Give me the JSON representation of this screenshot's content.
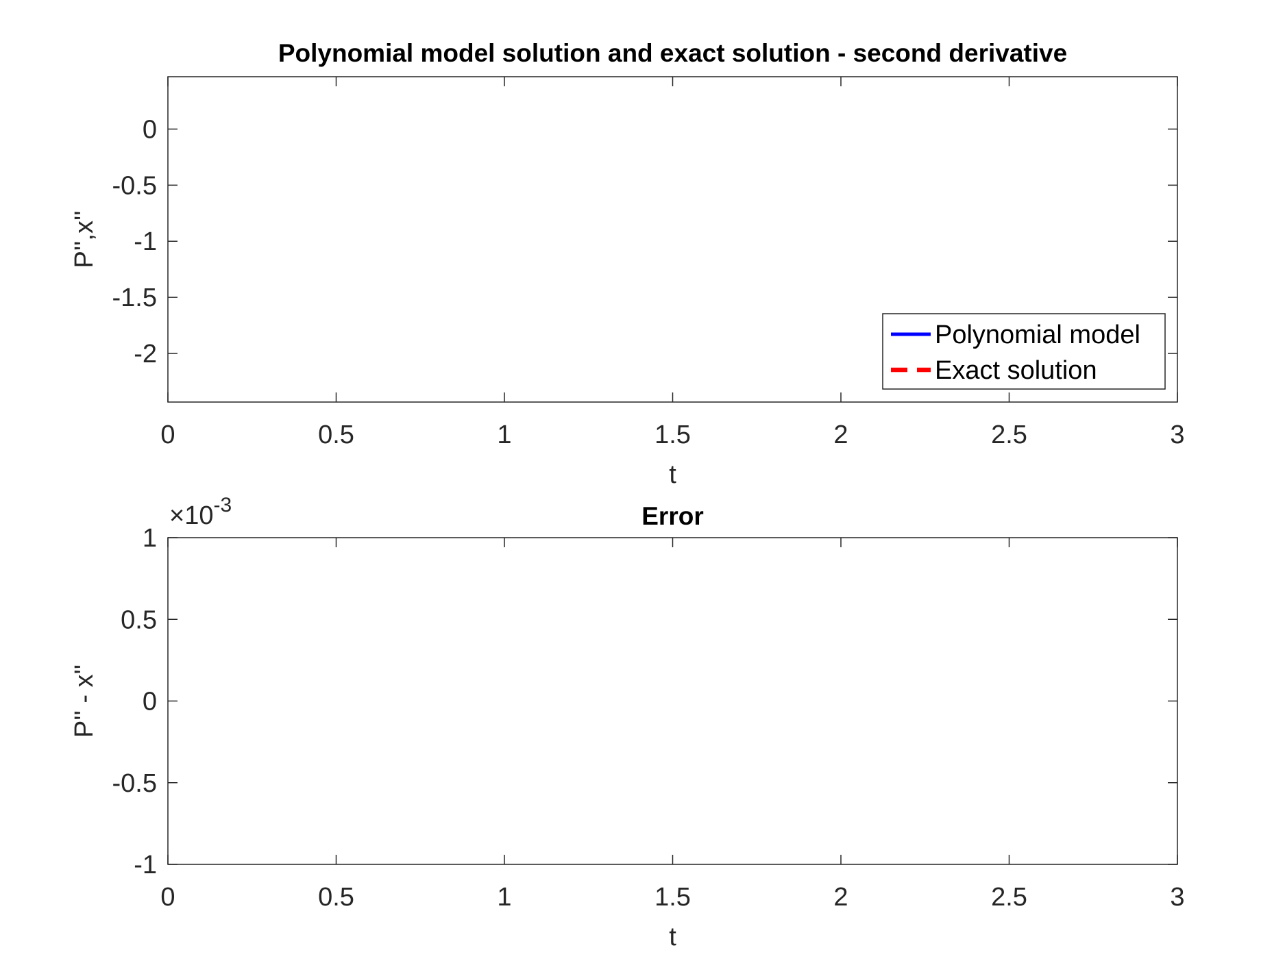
{
  "chart_data": [
    {
      "type": "line",
      "title": "Polynomial model solution and exact solution - second derivative",
      "xlabel": "t",
      "ylabel": "P'',x''",
      "xlim": [
        0,
        3
      ],
      "ylim": [
        -2.4333,
        0.4667
      ],
      "xticks": [
        0,
        0.5,
        1,
        1.5,
        2,
        2.5,
        3
      ],
      "xtick_labels": [
        "0",
        "0.5",
        "1",
        "1.5",
        "2",
        "2.5",
        "3"
      ],
      "yticks": [
        -2,
        -1.5,
        -1,
        -0.5,
        0
      ],
      "ytick_labels": [
        "-2",
        "-1.5",
        "-1",
        "-0.5",
        "0"
      ],
      "grid": true,
      "legend_position": "bottom-right",
      "series": [
        {
          "name": "Polynomial model",
          "color": "#0000ff",
          "style": "solid",
          "x": [
            0,
            0.05,
            0.1,
            0.15,
            0.2,
            0.25,
            0.3,
            0.4,
            0.5,
            0.6,
            0.7,
            0.8,
            0.9,
            1.0,
            1.1,
            1.2,
            1.3,
            1.4,
            1.5,
            1.6,
            1.7,
            1.8,
            1.9,
            2.0,
            2.1,
            2.2,
            2.3,
            2.4,
            2.5,
            2.6,
            2.7,
            2.8,
            2.9,
            3.0
          ],
          "y": [
            -2.0,
            -2.2,
            -2.29,
            -2.3,
            -2.26,
            -2.18,
            -2.06,
            -1.68,
            -1.18,
            -0.7,
            -0.32,
            -0.05,
            0.14,
            0.24,
            0.28,
            0.28,
            0.25,
            0.2,
            0.16,
            0.11,
            0.07,
            0.03,
            0.0,
            -0.02,
            -0.03,
            -0.035,
            -0.035,
            -0.03,
            -0.025,
            -0.02,
            -0.015,
            -0.01,
            -0.005,
            0.0
          ]
        },
        {
          "name": "Exact solution",
          "color": "#ff0000",
          "style": "dashed",
          "x": [
            0,
            0.05,
            0.1,
            0.15,
            0.2,
            0.25,
            0.3,
            0.4,
            0.5,
            0.6,
            0.7,
            0.8,
            0.9,
            1.0,
            1.1,
            1.2,
            1.3,
            1.4,
            1.5,
            1.6,
            1.7,
            1.8,
            1.9,
            2.0,
            2.1,
            2.2,
            2.3,
            2.4,
            2.5,
            2.6,
            2.7,
            2.8,
            2.9,
            3.0
          ],
          "y": [
            -2.0,
            -2.2,
            -2.29,
            -2.3,
            -2.26,
            -2.18,
            -2.06,
            -1.68,
            -1.18,
            -0.7,
            -0.32,
            -0.05,
            0.14,
            0.24,
            0.28,
            0.28,
            0.25,
            0.2,
            0.16,
            0.11,
            0.07,
            0.03,
            0.0,
            -0.02,
            -0.03,
            -0.035,
            -0.035,
            -0.03,
            -0.025,
            -0.02,
            -0.015,
            -0.01,
            -0.005,
            0.0
          ]
        }
      ]
    },
    {
      "type": "line",
      "title": "Error",
      "xlabel": "t",
      "ylabel": "P'' - x''",
      "y_exponent_label": "×10",
      "y_exponent_value": "-3",
      "xlim": [
        0,
        3
      ],
      "ylim": [
        -1,
        1
      ],
      "xticks": [
        0,
        0.5,
        1,
        1.5,
        2,
        2.5,
        3
      ],
      "xtick_labels": [
        "0",
        "0.5",
        "1",
        "1.5",
        "2",
        "2.5",
        "3"
      ],
      "yticks": [
        -1,
        -0.5,
        0,
        0.5,
        1
      ],
      "ytick_labels": [
        "-1",
        "-0.5",
        "0",
        "0.5",
        "1"
      ],
      "grid": true,
      "series": [
        {
          "color": "#0000ff",
          "style": "solid",
          "x": [
            0,
            0.02,
            0.04,
            0.06,
            0.09,
            0.12,
            0.15,
            0.19,
            0.23,
            0.27,
            0.31,
            0.35,
            0.4,
            0.45,
            0.5,
            0.55,
            0.6,
            0.65,
            0.7,
            0.75,
            0.8,
            0.85,
            0.9,
            0.95,
            1.0,
            1.06,
            1.12,
            1.18,
            1.24,
            1.3,
            1.36,
            1.42,
            1.47,
            1.53,
            1.59,
            1.65,
            1.71,
            1.77,
            1.83,
            1.9,
            1.97,
            2.04,
            2.11,
            2.18,
            2.23,
            2.28,
            2.34,
            2.4,
            2.46,
            2.53,
            2.6,
            2.66,
            2.72,
            2.78,
            2.83,
            2.88,
            2.93,
            2.97,
            3.0
          ],
          "y": [
            0.9,
            0.2,
            -0.25,
            -0.37,
            -0.18,
            0.12,
            0.33,
            0.41,
            0.3,
            0.01,
            -0.3,
            -0.46,
            -0.49,
            -0.3,
            0.02,
            0.35,
            0.56,
            0.6,
            0.6,
            0.48,
            0.2,
            -0.12,
            -0.42,
            -0.64,
            -0.72,
            -0.75,
            -0.6,
            -0.28,
            0.12,
            0.48,
            0.7,
            0.77,
            0.77,
            0.68,
            0.4,
            0.02,
            -0.32,
            -0.52,
            -0.6,
            -0.6,
            -0.5,
            -0.25,
            0.07,
            0.3,
            0.38,
            0.39,
            0.32,
            0.13,
            -0.06,
            -0.22,
            -0.26,
            -0.22,
            -0.08,
            0.08,
            0.15,
            0.11,
            -0.04,
            -0.14,
            -0.12
          ]
        }
      ]
    }
  ]
}
